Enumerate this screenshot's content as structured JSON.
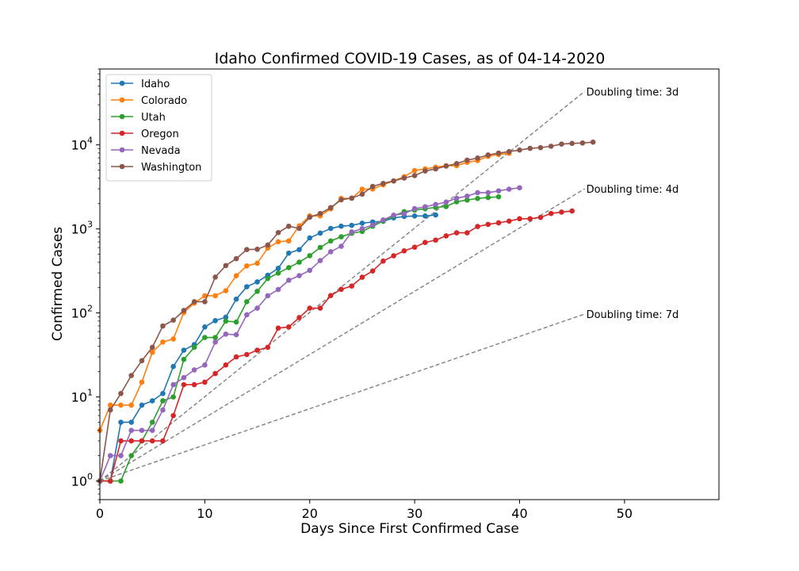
{
  "chart_data": {
    "type": "line",
    "title": "Idaho Confirmed COVID-19 Cases, as of 04-14-2020",
    "xlabel": "Days Since First Confirmed Case",
    "ylabel": "Confirmed Cases",
    "xlim": [
      0,
      59
    ],
    "ylim": [
      0.6,
      80000
    ],
    "yscale": "log",
    "grid": false,
    "legend_position": "upper-left",
    "x_ticks": [
      0,
      10,
      20,
      30,
      40,
      50
    ],
    "x_tick_labels": [
      "0",
      "10",
      "20",
      "30",
      "40",
      "50"
    ],
    "y_ticks": [
      1,
      10,
      100,
      1000,
      10000
    ],
    "y_tick_labels": [
      {
        "base": "10",
        "exp": "0"
      },
      {
        "base": "10",
        "exp": "1"
      },
      {
        "base": "10",
        "exp": "2"
      },
      {
        "base": "10",
        "exp": "3"
      },
      {
        "base": "10",
        "exp": "4"
      }
    ],
    "series": [
      {
        "name": "Idaho",
        "color": "#1f77b4",
        "values": [
          1,
          1,
          5,
          5,
          8,
          9,
          11,
          23,
          36,
          42,
          68,
          81,
          89,
          146,
          205,
          234,
          281,
          340,
          515,
          567,
          781,
          891,
          1013,
          1077,
          1101,
          1170,
          1210,
          1232,
          1353,
          1407,
          1426,
          1426,
          1464
        ]
      },
      {
        "name": "Colorado",
        "color": "#ff7f0e",
        "values": [
          4,
          8,
          8,
          8,
          15,
          34,
          45,
          49,
          101,
          131,
          160,
          160,
          184,
          277,
          363,
          390,
          591,
          704,
          720,
          1086,
          1430,
          1430,
          1734,
          2307,
          2311,
          2966,
          2990,
          3346,
          3728,
          4182,
          4950,
          5172,
          5429,
          5655,
          5655,
          6202,
          6510,
          7303,
          7691,
          7950
        ]
      },
      {
        "name": "Utah",
        "color": "#2ca02c",
        "values": [
          1,
          1,
          1,
          2,
          3,
          5,
          9,
          10,
          28,
          39,
          51,
          51,
          80,
          78,
          136,
          181,
          257,
          298,
          346,
          402,
          480,
          602,
          719,
          806,
          887,
          934,
          1074,
          1246,
          1428,
          1605,
          1675,
          1738,
          1804,
          1846,
          2103,
          2206,
          2303,
          2363,
          2412
        ]
      },
      {
        "name": "Oregon",
        "color": "#d62728",
        "values": [
          1,
          1,
          3,
          3,
          3,
          3,
          3,
          6,
          14,
          14,
          15,
          19,
          24,
          30,
          32,
          36,
          39,
          66,
          68,
          88,
          114,
          114,
          161,
          191,
          209,
          266,
          316,
          414,
          479,
          548,
          606,
          690,
          736,
          826,
          899,
          899,
          1068,
          1132,
          1181,
          1239,
          1321,
          1321,
          1371,
          1527,
          1584,
          1633
        ]
      },
      {
        "name": "Nevada",
        "color": "#9467bd",
        "values": [
          1,
          2,
          2,
          4,
          4,
          4,
          7,
          14,
          17,
          21,
          24,
          45,
          56,
          55,
          95,
          114,
          160,
          190,
          245,
          278,
          321,
          420,
          535,
          621,
          920,
          1008,
          1113,
          1279,
          1458,
          1514,
          1742,
          1836,
          1953,
          2087,
          2318,
          2456,
          2700,
          2700,
          2836,
          2971,
          3088
        ]
      },
      {
        "name": "Washington",
        "color": "#8c564b",
        "values": [
          1,
          7,
          11,
          18,
          27,
          39,
          70,
          82,
          107,
          136,
          136,
          267,
          366,
          442,
          568,
          572,
          643,
          904,
          1076,
          1014,
          1376,
          1524,
          1793,
          2221,
          2328,
          2591,
          3207,
          3477,
          3723,
          4030,
          4310,
          4896,
          5179,
          5588,
          5984,
          6585,
          6966,
          7591,
          7984,
          8311,
          8682,
          9097,
          9276,
          9639,
          10224,
          10411,
          10538,
          10783
        ]
      }
    ],
    "reference_lines": [
      {
        "label": "Doubling time: 3d",
        "doubling_days": 3,
        "x_end": 46.2
      },
      {
        "label": "Doubling time: 4d",
        "doubling_days": 4,
        "x_end": 46.2
      },
      {
        "label": "Doubling time: 7d",
        "doubling_days": 7,
        "x_end": 46.2
      }
    ]
  }
}
